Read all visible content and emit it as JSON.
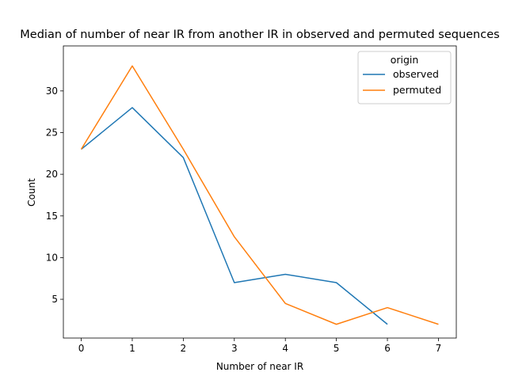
{
  "chart_data": {
    "type": "line",
    "title": "Median of number of near IR from another IR in observed and permuted sequences",
    "xlabel": "Number of near IR",
    "ylabel": "Count",
    "xlim": [
      -0.35,
      7.35
    ],
    "ylim": [
      0.35,
      35.4
    ],
    "xticks": [
      0,
      1,
      2,
      3,
      4,
      5,
      6,
      7
    ],
    "yticks": [
      5,
      10,
      15,
      20,
      25,
      30
    ],
    "grid": false,
    "legend": {
      "title": "origin",
      "position": "top-right"
    },
    "series": [
      {
        "name": "observed",
        "color": "#1f77b4",
        "x": [
          0,
          1,
          2,
          3,
          4,
          5,
          6
        ],
        "y": [
          23,
          28,
          22,
          7,
          8,
          7,
          2
        ]
      },
      {
        "name": "permuted",
        "color": "#ff7f0e",
        "x": [
          0,
          1,
          2,
          3,
          4,
          5,
          6,
          7
        ],
        "y": [
          23,
          33,
          23,
          12.5,
          4.5,
          2,
          4,
          2
        ]
      }
    ]
  }
}
